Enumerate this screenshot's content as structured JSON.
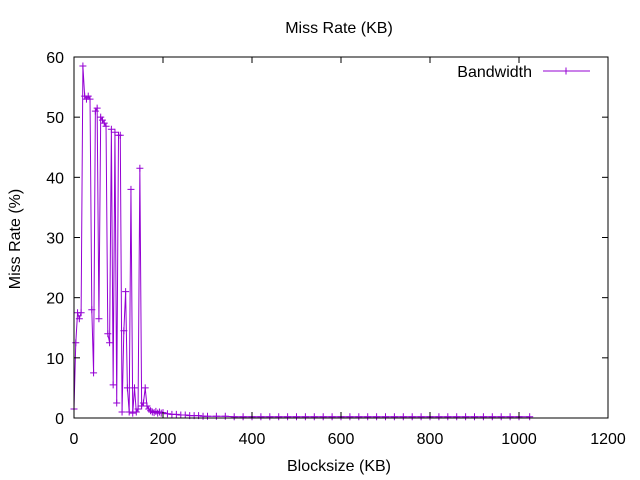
{
  "chart_data": {
    "type": "line",
    "title": "Miss Rate (KB)",
    "xlabel": "Blocksize (KB)",
    "ylabel": "Miss Rate (%)",
    "xlim": [
      0,
      1200
    ],
    "ylim": [
      0,
      60
    ],
    "x_ticks": [
      0,
      200,
      400,
      600,
      800,
      1000,
      1200
    ],
    "y_ticks": [
      0,
      10,
      20,
      30,
      40,
      50,
      60
    ],
    "grid": false,
    "legend_position": "top-right",
    "colors": {
      "series": "#9400d3",
      "axes": "#000000",
      "background": "#ffffff"
    },
    "series": [
      {
        "name": "Bandwidth",
        "marker": "plus",
        "points": [
          [
            0,
            1.5
          ],
          [
            4,
            12.5
          ],
          [
            8,
            17.5
          ],
          [
            12,
            16.5
          ],
          [
            16,
            17.5
          ],
          [
            20,
            58.5
          ],
          [
            24,
            53.5
          ],
          [
            28,
            53.0
          ],
          [
            32,
            53.5
          ],
          [
            36,
            53.0
          ],
          [
            40,
            18.0
          ],
          [
            44,
            7.5
          ],
          [
            48,
            51.0
          ],
          [
            52,
            51.5
          ],
          [
            56,
            16.5
          ],
          [
            60,
            50.0
          ],
          [
            64,
            49.5
          ],
          [
            68,
            49.0
          ],
          [
            72,
            48.5
          ],
          [
            76,
            14.0
          ],
          [
            80,
            12.5
          ],
          [
            84,
            48.0
          ],
          [
            88,
            5.5
          ],
          [
            92,
            47.5
          ],
          [
            96,
            2.5
          ],
          [
            100,
            47.0
          ],
          [
            104,
            47.0
          ],
          [
            108,
            1.0
          ],
          [
            112,
            14.5
          ],
          [
            116,
            21.0
          ],
          [
            120,
            5.0
          ],
          [
            124,
            1.0
          ],
          [
            128,
            38.0
          ],
          [
            132,
            0.8
          ],
          [
            136,
            5.0
          ],
          [
            140,
            1.0
          ],
          [
            144,
            1.5
          ],
          [
            148,
            41.5
          ],
          [
            152,
            2.0
          ],
          [
            156,
            2.5
          ],
          [
            160,
            5.0
          ],
          [
            164,
            2.0
          ],
          [
            168,
            1.5
          ],
          [
            172,
            1.2
          ],
          [
            176,
            1.0
          ],
          [
            180,
            0.9
          ],
          [
            184,
            1.1
          ],
          [
            188,
            0.8
          ],
          [
            192,
            1.0
          ],
          [
            196,
            0.8
          ],
          [
            200,
            0.9
          ],
          [
            210,
            0.7
          ],
          [
            220,
            0.6
          ],
          [
            230,
            0.6
          ],
          [
            240,
            0.5
          ],
          [
            250,
            0.5
          ],
          [
            260,
            0.4
          ],
          [
            270,
            0.4
          ],
          [
            280,
            0.4
          ],
          [
            290,
            0.3
          ],
          [
            300,
            0.3
          ],
          [
            320,
            0.3
          ],
          [
            340,
            0.3
          ],
          [
            360,
            0.2
          ],
          [
            380,
            0.2
          ],
          [
            400,
            0.2
          ],
          [
            420,
            0.2
          ],
          [
            440,
            0.2
          ],
          [
            460,
            0.2
          ],
          [
            480,
            0.2
          ],
          [
            500,
            0.2
          ],
          [
            520,
            0.2
          ],
          [
            540,
            0.2
          ],
          [
            560,
            0.2
          ],
          [
            580,
            0.2
          ],
          [
            600,
            0.2
          ],
          [
            620,
            0.2
          ],
          [
            640,
            0.2
          ],
          [
            660,
            0.2
          ],
          [
            680,
            0.2
          ],
          [
            700,
            0.2
          ],
          [
            720,
            0.2
          ],
          [
            740,
            0.2
          ],
          [
            760,
            0.2
          ],
          [
            780,
            0.2
          ],
          [
            800,
            0.2
          ],
          [
            820,
            0.2
          ],
          [
            840,
            0.2
          ],
          [
            860,
            0.2
          ],
          [
            880,
            0.2
          ],
          [
            900,
            0.2
          ],
          [
            920,
            0.2
          ],
          [
            940,
            0.2
          ],
          [
            960,
            0.2
          ],
          [
            980,
            0.2
          ],
          [
            1000,
            0.2
          ],
          [
            1024,
            0.2
          ]
        ]
      }
    ]
  }
}
